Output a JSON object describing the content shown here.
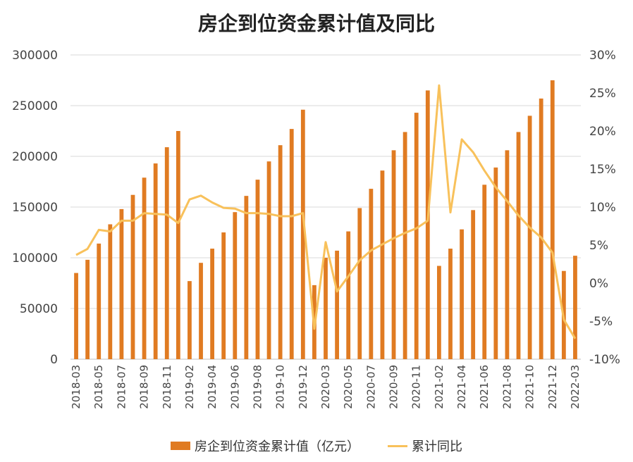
{
  "title": "房企到位资金累计值及同比",
  "colors": {
    "bar": "#E07B22",
    "line": "#F8C15B",
    "grid": "#D9D9D9"
  },
  "chart_data": {
    "type": "bar",
    "title": "房企到位资金累计值及同比",
    "categories": [
      "2018-03",
      "2018-04",
      "2018-05",
      "2018-06",
      "2018-07",
      "2018-08",
      "2018-09",
      "2018-10",
      "2018-11",
      "2018-12",
      "2019-02",
      "2019-03",
      "2019-04",
      "2019-05",
      "2019-06",
      "2019-07",
      "2019-08",
      "2019-09",
      "2019-10",
      "2019-11",
      "2019-12",
      "2020-02",
      "2020-03",
      "2020-04",
      "2020-05",
      "2020-06",
      "2020-07",
      "2020-08",
      "2020-09",
      "2020-10",
      "2020-11",
      "2020-12",
      "2021-02",
      "2021-03",
      "2021-04",
      "2021-05",
      "2021-06",
      "2021-07",
      "2021-08",
      "2021-09",
      "2021-10",
      "2021-11",
      "2021-12",
      "2022-02",
      "2022-03"
    ],
    "x_tick_labels": [
      "2018-03",
      "2018-05",
      "2018-07",
      "2018-09",
      "2018-11",
      "2019-02",
      "2019-04",
      "2019-06",
      "2019-08",
      "2019-10",
      "2019-12",
      "2020-03",
      "2020-05",
      "2020-07",
      "2020-09",
      "2020-11",
      "2021-02",
      "2021-04",
      "2021-06",
      "2021-08",
      "2021-10",
      "2021-12",
      "2022-03"
    ],
    "series": [
      {
        "name": "房企到位资金累计值（亿元）",
        "type": "bar",
        "axis": "left",
        "values": [
          85000,
          98000,
          114000,
          133000,
          148000,
          162000,
          179000,
          193000,
          209000,
          225000,
          77000,
          95000,
          109000,
          125000,
          145000,
          161000,
          177000,
          195000,
          211000,
          227000,
          246000,
          73000,
          100000,
          107000,
          126000,
          149000,
          168000,
          186000,
          206000,
          224000,
          243000,
          265000,
          92000,
          109000,
          128000,
          147000,
          172000,
          189000,
          206000,
          224000,
          240000,
          257000,
          275000,
          87000,
          102000
        ]
      },
      {
        "name": "累计同比",
        "type": "line",
        "axis": "right",
        "unit": "%",
        "values": [
          3.7,
          4.5,
          7.0,
          6.8,
          8.2,
          8.2,
          9.2,
          9.1,
          9.0,
          7.9,
          11.0,
          11.5,
          10.6,
          9.9,
          9.8,
          9.2,
          9.2,
          9.1,
          8.8,
          8.8,
          9.2,
          -6.0,
          5.4,
          -1.1,
          0.9,
          3.0,
          4.3,
          5.1,
          5.9,
          6.6,
          7.2,
          8.2,
          26.0,
          9.3,
          18.9,
          17.2,
          14.8,
          12.6,
          10.8,
          8.9,
          7.3,
          6.0,
          4.0,
          -4.8,
          -7.3
        ]
      }
    ],
    "y_left": {
      "ylim": [
        0,
        300000
      ],
      "ticks": [
        "0",
        "50000",
        "100000",
        "150000",
        "200000",
        "250000",
        "300000"
      ]
    },
    "y_right": {
      "ylim": [
        -10,
        30
      ],
      "ticks": [
        "-10%",
        "-5%",
        "0%",
        "5%",
        "10%",
        "15%",
        "20%",
        "25%",
        "30%"
      ]
    },
    "grid": true,
    "legend_position": "bottom"
  },
  "legend": {
    "bar_label": "房企到位资金累计值（亿元）",
    "line_label": "累计同比"
  }
}
